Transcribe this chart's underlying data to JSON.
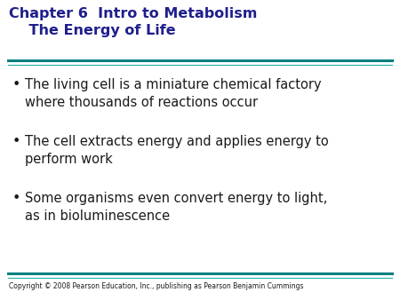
{
  "title_line1": "Chapter 6  Intro to Metabolism",
  "title_line2": "    The Energy of Life",
  "title_color": "#1F1F8C",
  "bullet_color": "#1a1a1a",
  "line_color_thick": "#008080",
  "line_color_thin": "#20B2AA",
  "background_color": "#FFFFFF",
  "copyright": "Copyright © 2008 Pearson Education, Inc., publishing as Pearson Benjamin Cummings",
  "bullets": [
    "The living cell is a miniature chemical factory\nwhere thousands of reactions occur",
    "The cell extracts energy and applies energy to\nperform work",
    "Some organisms even convert energy to light,\nas in bioluminescence"
  ],
  "title_fontsize": 11.5,
  "bullet_fontsize": 10.5,
  "copyright_fontsize": 5.5
}
